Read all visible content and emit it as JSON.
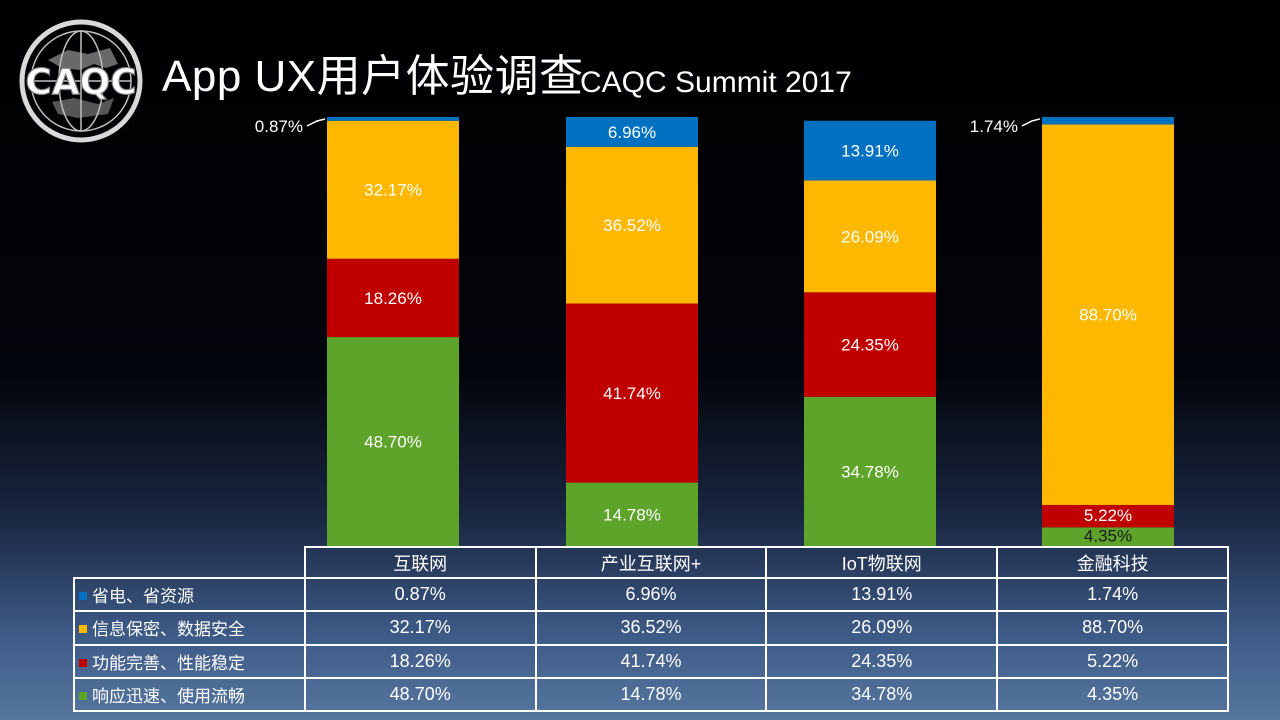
{
  "header": {
    "title": "App UX用户体验调查",
    "subtitle": "CAQC Summit 2017",
    "logo_text": "CAQC"
  },
  "chart_data": {
    "type": "bar",
    "stacked": true,
    "normalized": true,
    "categories": [
      "互联网",
      "产业互联网+",
      "IoT物联网",
      "金融科技"
    ],
    "series": [
      {
        "name": "省电、省资源",
        "color": "#0070c0",
        "values": [
          0.87,
          6.96,
          13.91,
          1.74
        ],
        "labels": [
          "0.87%",
          "6.96%",
          "13.91%",
          "1.74%"
        ]
      },
      {
        "name": "信息保密、数据安全",
        "color": "#ffb800",
        "values": [
          32.17,
          36.52,
          26.09,
          88.7
        ],
        "labels": [
          "32.17%",
          "36.52%",
          "26.09%",
          "88.70%"
        ]
      },
      {
        "name": "功能完善、性能稳定",
        "color": "#c00000",
        "values": [
          18.26,
          41.74,
          24.35,
          5.22
        ],
        "labels": [
          "18.26%",
          "41.74%",
          "24.35%",
          "5.22%"
        ]
      },
      {
        "name": "响应迅速、使用流畅",
        "color": "#5ea42a",
        "values": [
          48.7,
          14.78,
          34.78,
          4.35
        ],
        "labels": [
          "48.70%",
          "14.78%",
          "34.78%",
          "4.35%"
        ]
      }
    ],
    "ylim": [
      0,
      100
    ],
    "legend": "data-table-bottom",
    "grid": false
  }
}
